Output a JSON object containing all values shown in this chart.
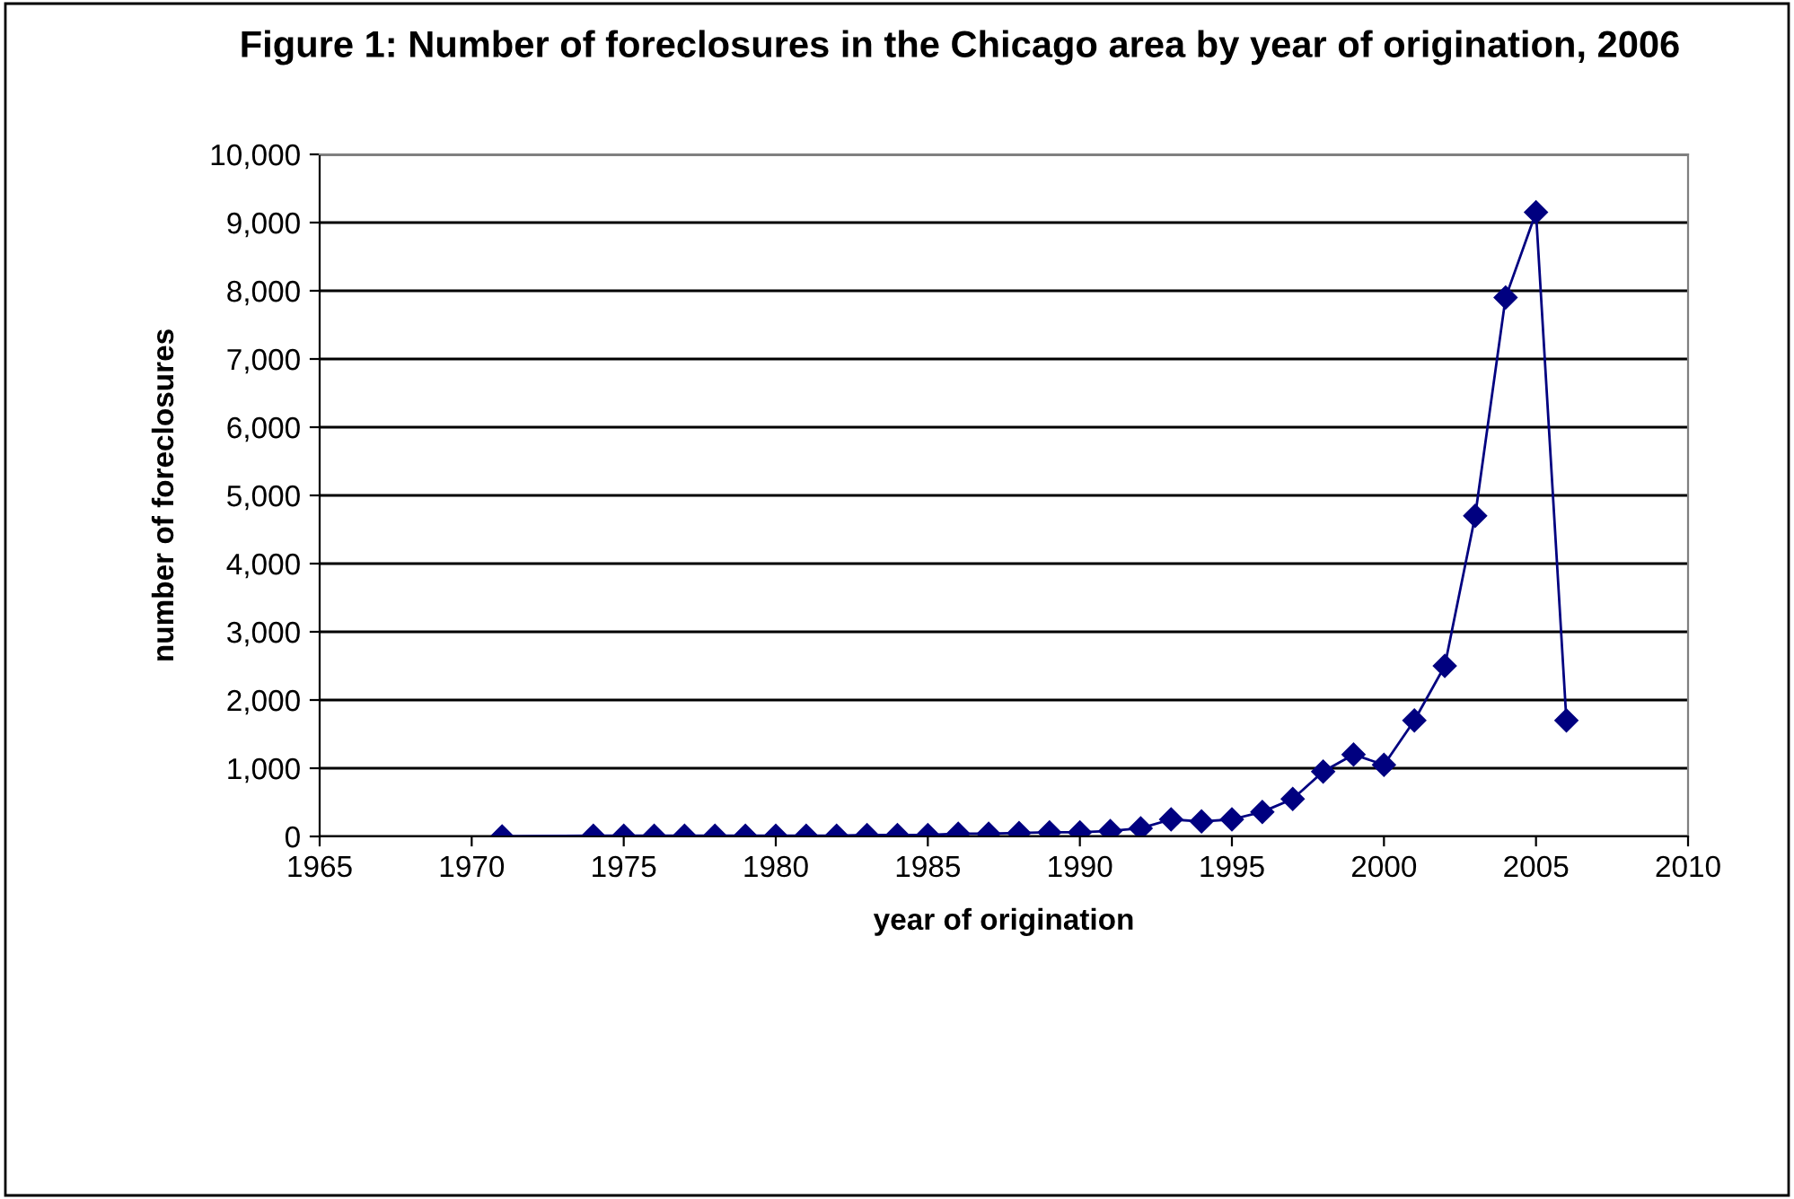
{
  "chart_data": {
    "type": "line",
    "title": "Figure 1: Number of foreclosures in the Chicago area by year of origination, 2006",
    "xlabel": "year of origination",
    "ylabel": "number of foreclosures",
    "x": [
      1971,
      1974,
      1975,
      1976,
      1977,
      1978,
      1979,
      1980,
      1981,
      1982,
      1983,
      1984,
      1985,
      1986,
      1987,
      1988,
      1989,
      1990,
      1991,
      1992,
      1993,
      1994,
      1995,
      1996,
      1997,
      1998,
      1999,
      2000,
      2001,
      2002,
      2003,
      2004,
      2005,
      2006
    ],
    "series": [
      {
        "color": "#000080",
        "values": [
          0,
          10,
          10,
          10,
          10,
          10,
          10,
          10,
          10,
          10,
          20,
          20,
          20,
          40,
          40,
          50,
          60,
          60,
          80,
          120,
          250,
          220,
          250,
          360,
          550,
          950,
          1200,
          1050,
          1700,
          2500,
          4700,
          7900,
          9150,
          1700
        ]
      }
    ],
    "xlim": [
      1965,
      2010
    ],
    "xticks": [
      1965,
      1970,
      1975,
      1980,
      1985,
      1990,
      1995,
      2000,
      2005,
      2010
    ],
    "ylim": [
      0,
      10000
    ],
    "yticks": [
      {
        "value": 0,
        "label": "0"
      },
      {
        "value": 1000,
        "label": "1,000"
      },
      {
        "value": 2000,
        "label": "2,000"
      },
      {
        "value": 3000,
        "label": "3,000"
      },
      {
        "value": 4000,
        "label": "4,000"
      },
      {
        "value": 5000,
        "label": "5,000"
      },
      {
        "value": 6000,
        "label": "6,000"
      },
      {
        "value": 7000,
        "label": "7,000"
      },
      {
        "value": 8000,
        "label": "8,000"
      },
      {
        "value": 9000,
        "label": "9,000"
      },
      {
        "value": 10000,
        "label": "10,000"
      }
    ],
    "grid": "y",
    "marker": "diamond",
    "line_style": "solid",
    "legend": false
  }
}
